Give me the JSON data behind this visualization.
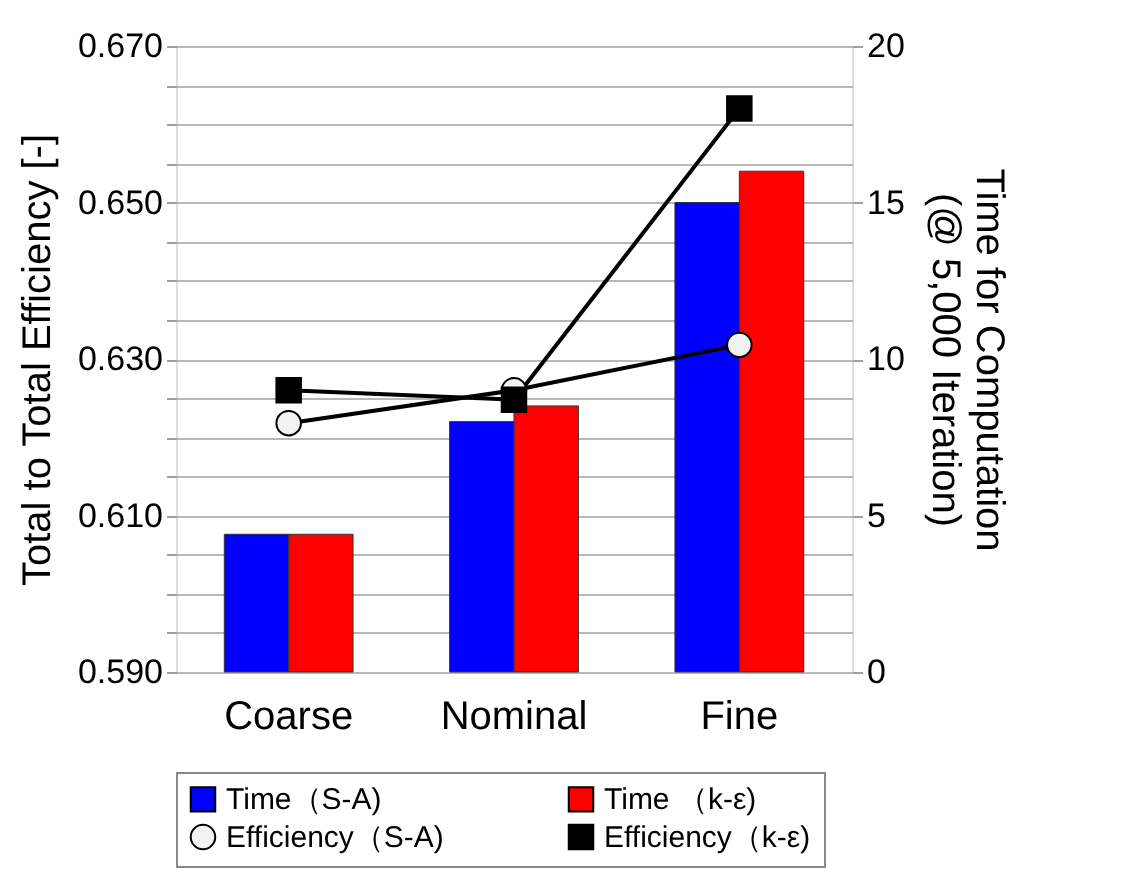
{
  "chart_data": {
    "type": "bar",
    "categories": [
      "Coarse",
      "Nominal",
      "Fine"
    ],
    "ylabel": "Total to Total Efficiency [-]",
    "y2label": "Time for Computation\n(@ 5,000 Iteration)",
    "ylim": [
      0.59,
      0.67
    ],
    "yticks": [
      {
        "value": 0.59,
        "label": "0.590"
      },
      {
        "value": 0.595,
        "label": null
      },
      {
        "value": 0.6,
        "label": null
      },
      {
        "value": 0.605,
        "label": null
      },
      {
        "value": 0.61,
        "label": "0.610"
      },
      {
        "value": 0.615,
        "label": null
      },
      {
        "value": 0.62,
        "label": null
      },
      {
        "value": 0.625,
        "label": null
      },
      {
        "value": 0.63,
        "label": "0.630"
      },
      {
        "value": 0.635,
        "label": null
      },
      {
        "value": 0.64,
        "label": null
      },
      {
        "value": 0.645,
        "label": null
      },
      {
        "value": 0.65,
        "label": "0.650"
      },
      {
        "value": 0.655,
        "label": null
      },
      {
        "value": 0.66,
        "label": null
      },
      {
        "value": 0.665,
        "label": null
      },
      {
        "value": 0.67,
        "label": "0.670"
      }
    ],
    "y2lim": [
      0,
      20
    ],
    "y2ticks": [
      0,
      5,
      10,
      15,
      20
    ],
    "grid": "y",
    "legend": "bottom",
    "series": [
      {
        "name": "Time（S-A)",
        "axis": "y2",
        "color": "#0000ff",
        "values": [
          4.4,
          8.0,
          15.0
        ]
      },
      {
        "name": "Time （k-ε)",
        "axis": "y2",
        "color": "#ff0000",
        "values": [
          4.4,
          8.5,
          16.0
        ]
      },
      {
        "name": "Efficiency（S-A)",
        "type": "line",
        "marker": "circle",
        "color": "#000000",
        "values": [
          0.6218,
          0.626,
          0.6318
        ]
      },
      {
        "name": "Efficiency（k-ε)",
        "type": "line",
        "marker": "square",
        "color": "#000000",
        "values": [
          0.626,
          0.6248,
          0.662
        ]
      }
    ]
  }
}
